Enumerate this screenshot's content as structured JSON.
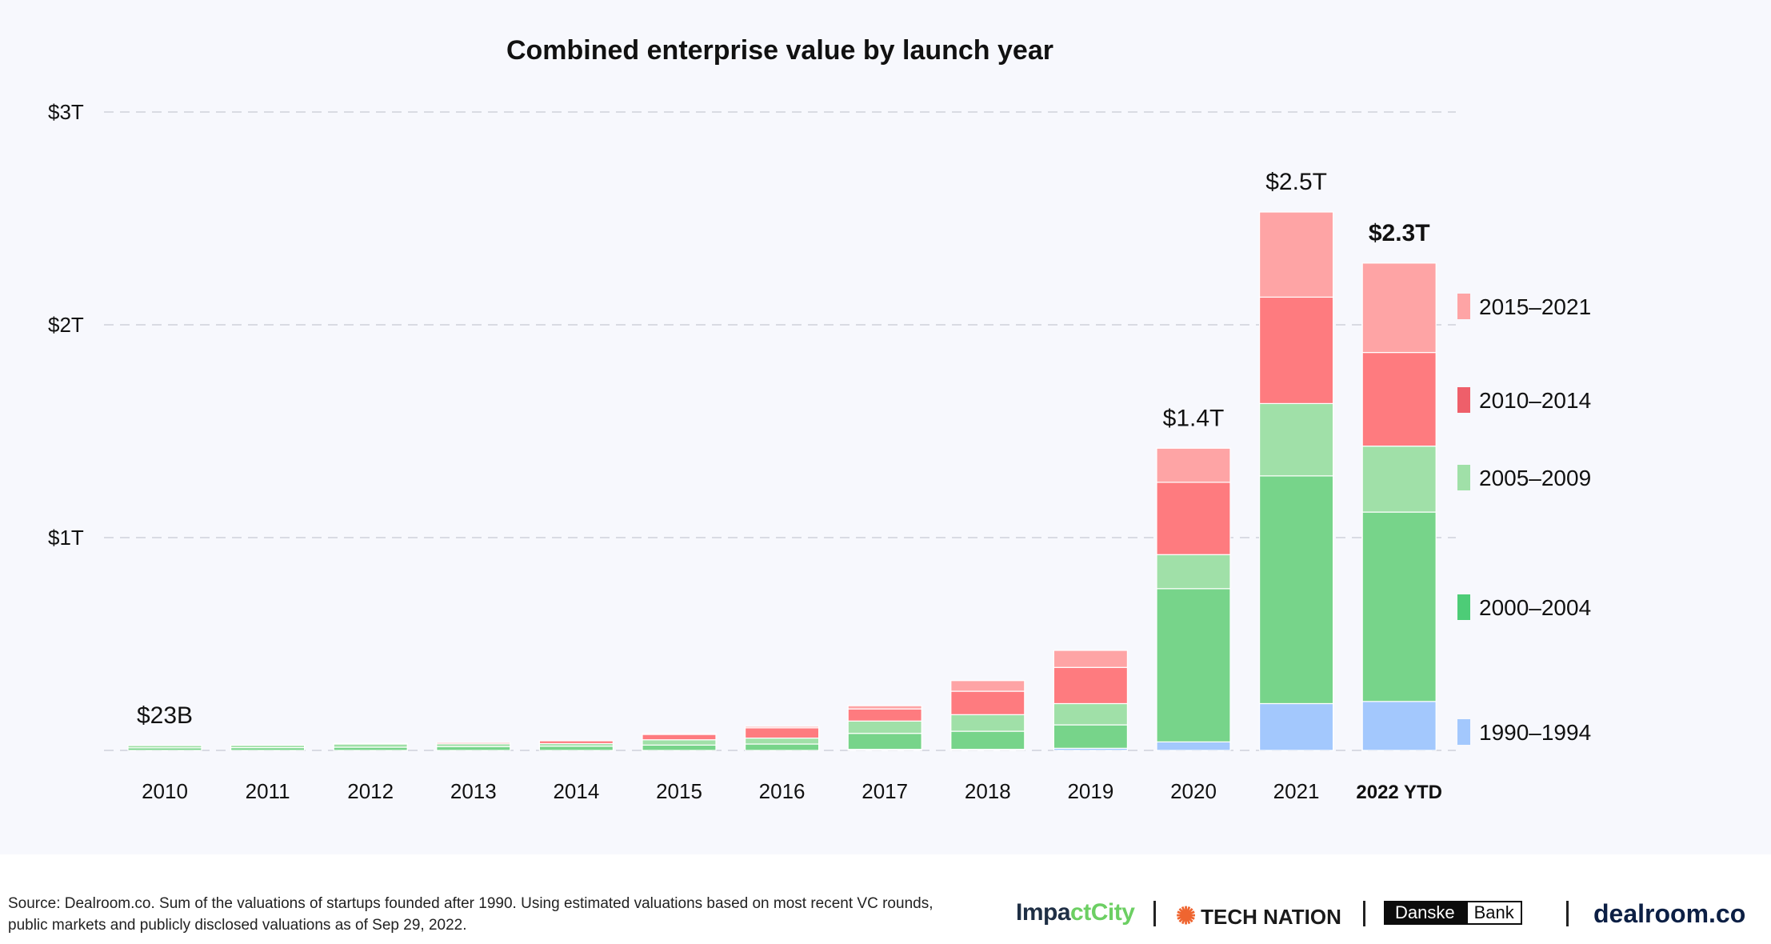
{
  "chart_data": {
    "type": "bar",
    "stacked": true,
    "title": "Combined enterprise value by launch year",
    "xlabel": "",
    "ylabel": "",
    "ylim": [
      0,
      3.0
    ],
    "yticks": [
      {
        "value": 1,
        "label": "$1T"
      },
      {
        "value": 2,
        "label": "$2T"
      },
      {
        "value": 3,
        "label": "$3T"
      }
    ],
    "grid": true,
    "categories": [
      "2010",
      "2011",
      "2012",
      "2013",
      "2014",
      "2015",
      "2016",
      "2017",
      "2018",
      "2019",
      "2020",
      "2021",
      "2022 YTD"
    ],
    "bold_categories": [
      "2022 YTD"
    ],
    "series": [
      {
        "name": "1990–1994",
        "color": "#a3c8fd",
        "values": [
          0.0,
          0.0,
          0.0,
          0.0,
          0.0,
          0.0,
          0.0,
          0.005,
          0.005,
          0.01,
          0.04,
          0.22,
          0.23
        ]
      },
      {
        "name": "2000–2004",
        "color": "#77d48a",
        "values": [
          0.012,
          0.013,
          0.015,
          0.018,
          0.02,
          0.025,
          0.03,
          0.075,
          0.085,
          0.11,
          0.72,
          1.07,
          0.89
        ]
      },
      {
        "name": "2005–2009",
        "color": "#a0e0a8",
        "values": [
          0.011,
          0.011,
          0.015,
          0.013,
          0.012,
          0.025,
          0.028,
          0.058,
          0.078,
          0.1,
          0.16,
          0.34,
          0.31
        ]
      },
      {
        "name": "2010–2014",
        "color": "#fe7b7f",
        "values": [
          0.0,
          0.0,
          0.003,
          0.006,
          0.013,
          0.025,
          0.048,
          0.057,
          0.11,
          0.17,
          0.34,
          0.5,
          0.44
        ]
      },
      {
        "name": "2015–2021",
        "color": "#fea4a5",
        "values": [
          0.0,
          0.0,
          0.0,
          0.0,
          0.0,
          0.005,
          0.007,
          0.015,
          0.05,
          0.08,
          0.16,
          0.4,
          0.42
        ]
      }
    ],
    "annotations": [
      {
        "category": "2010",
        "value": 0.023,
        "label": "$23B",
        "bold": false
      },
      {
        "category": "2020",
        "value": 1.42,
        "label": "$1.4T",
        "bold": false
      },
      {
        "category": "2021",
        "value": 2.53,
        "label": "$2.5T",
        "bold": false
      },
      {
        "category": "2022 YTD",
        "value": 2.29,
        "label": "$2.3T",
        "bold": true
      }
    ],
    "legend": {
      "placement": "right",
      "entries": [
        {
          "label": "2015–2021",
          "color": "#fea4a5"
        },
        {
          "label": "2010–2014",
          "color": "#ee5f6a"
        },
        {
          "label": "2005–2009",
          "color": "#a0e0a8"
        },
        {
          "label": "2000–2004",
          "color": "#4dcc77"
        },
        {
          "label": "1990–1994",
          "color": "#a3c8fd"
        }
      ]
    }
  },
  "footer": {
    "source_text": "Source: Dealroom.co. Sum of the valuations of startups founded after 1990. Using estimated valuations based on most recent VC rounds, public markets and publicly disclosed valuations as of Sep 29, 2022.",
    "logos": {
      "impactcity_a": "Impa",
      "impactcity_b": "ct",
      "impactcity_c": "City",
      "technation_sun": "✺",
      "technation": "TECH NATION",
      "danske_a": "Danske",
      "danske_b": "Bank",
      "dealroom": "dealroom.co"
    }
  }
}
